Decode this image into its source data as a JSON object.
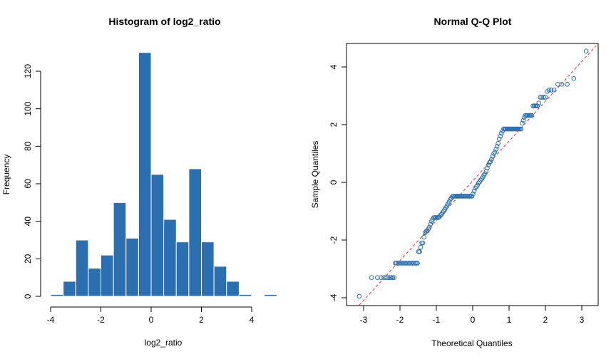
{
  "chart_data": [
    {
      "type": "bar",
      "title": "Histogram of log2_ratio",
      "xlabel": "log2_ratio",
      "ylabel": "Frequency",
      "bar_color": "#2c6fb0",
      "bar_edge_color": "#ffffff",
      "bin_edges": [
        -4.0,
        -3.5,
        -3.0,
        -2.5,
        -2.0,
        -1.5,
        -1.0,
        -0.5,
        0.0,
        0.5,
        1.0,
        1.5,
        2.0,
        2.5,
        3.0,
        3.5,
        4.0,
        4.5,
        5.0
      ],
      "values": [
        1,
        8,
        30,
        15,
        22,
        50,
        31,
        130,
        65,
        41,
        29,
        68,
        29,
        16,
        8,
        1,
        0,
        1
      ],
      "xlim": [
        -4,
        5
      ],
      "ylim": [
        0,
        130
      ],
      "x_ticks": [
        -4,
        -2,
        0,
        2,
        4
      ],
      "y_ticks": [
        0,
        20,
        40,
        60,
        80,
        100,
        120
      ],
      "x_tick_labels": [
        "-4",
        "-2",
        "0",
        "2",
        "4"
      ],
      "y_tick_labels": [
        "0",
        "20",
        "40",
        "60",
        "80",
        "100",
        "120"
      ],
      "grid": false
    },
    {
      "type": "scatter",
      "title": "Normal Q-Q Plot",
      "xlabel": "Theoretical Quantiles",
      "ylabel": "Sample Quantiles",
      "point_color": "#2c6fb0",
      "line_color": "#e0323a",
      "xlim": [
        -3.25,
        3.25
      ],
      "ylim": [
        -4.2,
        4.8
      ],
      "x_ticks": [
        -3,
        -2,
        -1,
        0,
        1,
        2,
        3
      ],
      "y_ticks": [
        -4,
        -2,
        0,
        2,
        4
      ],
      "x_tick_labels": [
        "-3",
        "-2",
        "-1",
        "0",
        "1",
        "2",
        "3"
      ],
      "y_tick_labels": [
        "-4",
        "-2",
        "0",
        "2",
        "4"
      ],
      "reference_line": {
        "slope": 1.38,
        "intercept": 0.05
      },
      "points": [
        [
          -3.12,
          -3.95
        ],
        [
          -2.78,
          -3.3
        ],
        [
          -2.62,
          -3.3
        ],
        [
          -2.52,
          -3.3
        ],
        [
          -2.44,
          -3.3
        ],
        [
          -2.38,
          -3.3
        ],
        [
          -2.33,
          -3.3
        ],
        [
          -2.28,
          -3.3
        ],
        [
          -2.24,
          -3.3
        ],
        [
          -2.2,
          -3.3
        ],
        [
          -2.16,
          -3.3
        ],
        [
          -2.13,
          -2.8
        ],
        [
          -2.1,
          -2.8
        ],
        [
          -2.06,
          -2.8
        ],
        [
          -2.02,
          -2.8
        ],
        [
          -1.98,
          -2.8
        ],
        [
          -1.94,
          -2.8
        ],
        [
          -1.9,
          -2.8
        ],
        [
          -1.86,
          -2.8
        ],
        [
          -1.82,
          -2.8
        ],
        [
          -1.78,
          -2.8
        ],
        [
          -1.74,
          -2.8
        ],
        [
          -1.7,
          -2.8
        ],
        [
          -1.66,
          -2.8
        ],
        [
          -1.62,
          -2.8
        ],
        [
          -1.58,
          -2.8
        ],
        [
          -1.55,
          -2.8
        ],
        [
          -1.52,
          -2.8
        ],
        [
          -1.49,
          -2.4
        ],
        [
          -1.46,
          -2.4
        ],
        [
          -1.43,
          -2.25
        ],
        [
          -1.4,
          -2.1
        ],
        [
          -1.37,
          -2.1
        ],
        [
          -1.34,
          -1.9
        ],
        [
          -1.31,
          -1.75
        ],
        [
          -1.28,
          -1.7
        ],
        [
          -1.25,
          -1.68
        ],
        [
          -1.22,
          -1.62
        ],
        [
          -1.19,
          -1.55
        ],
        [
          -1.16,
          -1.45
        ],
        [
          -1.13,
          -1.35
        ],
        [
          -1.1,
          -1.28
        ],
        [
          -1.07,
          -1.22
        ],
        [
          -1.04,
          -1.22
        ],
        [
          -1.01,
          -1.22
        ],
        [
          -0.98,
          -1.22
        ],
        [
          -0.95,
          -1.22
        ],
        [
          -0.92,
          -1.2
        ],
        [
          -0.89,
          -1.15
        ],
        [
          -0.86,
          -1.12
        ],
        [
          -0.83,
          -1.05
        ],
        [
          -0.8,
          -1.0
        ],
        [
          -0.77,
          -0.95
        ],
        [
          -0.74,
          -0.88
        ],
        [
          -0.71,
          -0.82
        ],
        [
          -0.68,
          -0.75
        ],
        [
          -0.65,
          -0.68
        ],
        [
          -0.62,
          -0.6
        ],
        [
          -0.59,
          -0.55
        ],
        [
          -0.56,
          -0.5
        ],
        [
          -0.53,
          -0.48
        ],
        [
          -0.5,
          -0.48
        ],
        [
          -0.47,
          -0.48
        ],
        [
          -0.44,
          -0.48
        ],
        [
          -0.41,
          -0.48
        ],
        [
          -0.38,
          -0.48
        ],
        [
          -0.35,
          -0.48
        ],
        [
          -0.32,
          -0.48
        ],
        [
          -0.29,
          -0.48
        ],
        [
          -0.26,
          -0.48
        ],
        [
          -0.23,
          -0.48
        ],
        [
          -0.2,
          -0.48
        ],
        [
          -0.17,
          -0.48
        ],
        [
          -0.14,
          -0.48
        ],
        [
          -0.11,
          -0.48
        ],
        [
          -0.08,
          -0.48
        ],
        [
          -0.05,
          -0.48
        ],
        [
          -0.02,
          -0.48
        ],
        [
          0.01,
          -0.4
        ],
        [
          0.04,
          -0.3
        ],
        [
          0.07,
          -0.2
        ],
        [
          0.1,
          -0.15
        ],
        [
          0.13,
          -0.1
        ],
        [
          0.16,
          -0.02
        ],
        [
          0.19,
          0.02
        ],
        [
          0.22,
          0.08
        ],
        [
          0.25,
          0.12
        ],
        [
          0.28,
          0.18
        ],
        [
          0.31,
          0.25
        ],
        [
          0.34,
          0.3
        ],
        [
          0.37,
          0.38
        ],
        [
          0.4,
          0.5
        ],
        [
          0.43,
          0.6
        ],
        [
          0.46,
          0.68
        ],
        [
          0.49,
          0.72
        ],
        [
          0.52,
          0.8
        ],
        [
          0.55,
          0.9
        ],
        [
          0.58,
          1.0
        ],
        [
          0.61,
          1.05
        ],
        [
          0.64,
          1.15
        ],
        [
          0.67,
          1.25
        ],
        [
          0.7,
          1.35
        ],
        [
          0.73,
          1.5
        ],
        [
          0.76,
          1.6
        ],
        [
          0.79,
          1.7
        ],
        [
          0.82,
          1.78
        ],
        [
          0.85,
          1.85
        ],
        [
          0.88,
          1.85
        ],
        [
          0.91,
          1.85
        ],
        [
          0.94,
          1.85
        ],
        [
          0.97,
          1.85
        ],
        [
          1.0,
          1.85
        ],
        [
          1.03,
          1.85
        ],
        [
          1.06,
          1.85
        ],
        [
          1.09,
          1.85
        ],
        [
          1.12,
          1.85
        ],
        [
          1.15,
          1.85
        ],
        [
          1.18,
          1.85
        ],
        [
          1.21,
          1.85
        ],
        [
          1.24,
          1.85
        ],
        [
          1.27,
          1.85
        ],
        [
          1.3,
          1.85
        ],
        [
          1.33,
          1.85
        ],
        [
          1.36,
          2.05
        ],
        [
          1.39,
          2.15
        ],
        [
          1.42,
          2.25
        ],
        [
          1.45,
          2.32
        ],
        [
          1.48,
          2.32
        ],
        [
          1.51,
          2.32
        ],
        [
          1.54,
          2.32
        ],
        [
          1.57,
          2.32
        ],
        [
          1.6,
          2.32
        ],
        [
          1.63,
          2.32
        ],
        [
          1.66,
          2.65
        ],
        [
          1.69,
          2.65
        ],
        [
          1.72,
          2.65
        ],
        [
          1.75,
          2.65
        ],
        [
          1.78,
          2.65
        ],
        [
          1.82,
          2.75
        ],
        [
          1.86,
          2.95
        ],
        [
          1.9,
          2.95
        ],
        [
          1.95,
          2.95
        ],
        [
          2.0,
          2.95
        ],
        [
          2.05,
          3.15
        ],
        [
          2.1,
          3.2
        ],
        [
          2.16,
          3.2
        ],
        [
          2.24,
          3.2
        ],
        [
          2.34,
          3.4
        ],
        [
          2.45,
          3.4
        ],
        [
          2.6,
          3.4
        ],
        [
          2.78,
          3.6
        ],
        [
          3.12,
          4.55
        ]
      ]
    }
  ]
}
